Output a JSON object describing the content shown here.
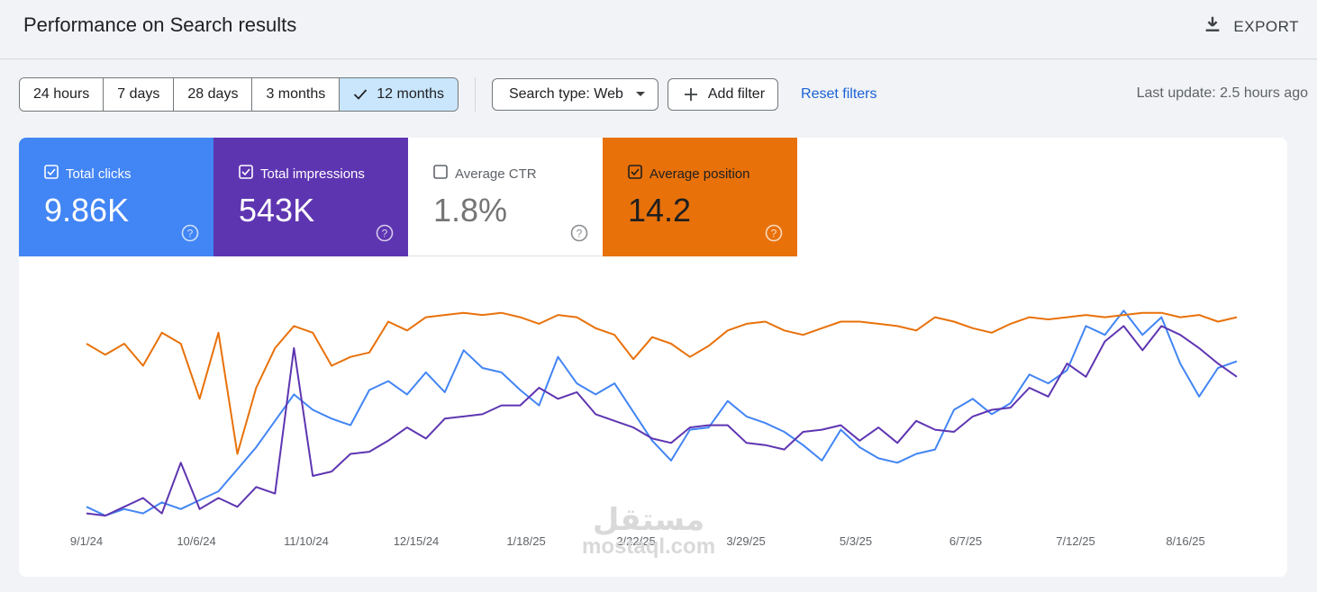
{
  "header": {
    "title": "Performance on Search results",
    "export_label": "EXPORT",
    "export_icon": "download-icon"
  },
  "date_ranges": [
    {
      "label": "24 hours",
      "active": false
    },
    {
      "label": "7 days",
      "active": false
    },
    {
      "label": "28 days",
      "active": false
    },
    {
      "label": "3 months",
      "active": false
    },
    {
      "label": "12 months",
      "active": true
    }
  ],
  "filters": {
    "search_type": "Search type: Web",
    "add_filter": "Add filter",
    "reset": "Reset filters"
  },
  "last_update": "Last update: 2.5 hours ago",
  "metrics": [
    {
      "label": "Total clicks",
      "value": "9.86K",
      "checked": true,
      "color": "#4285f4"
    },
    {
      "label": "Total impressions",
      "value": "543K",
      "checked": true,
      "color": "#5e35b1"
    },
    {
      "label": "Average CTR",
      "value": "1.8%",
      "checked": false,
      "color": "#ffffff"
    },
    {
      "label": "Average position",
      "value": "14.2",
      "checked": true,
      "color": "#e8710a"
    }
  ],
  "watermark": {
    "arabic": "مستقل",
    "latin": "mostaql.com"
  },
  "chart_data": {
    "type": "line",
    "x_tick_labels": [
      "9/1/24",
      "10/6/24",
      "11/10/24",
      "12/15/24",
      "1/18/25",
      "2/22/25",
      "3/29/25",
      "5/3/25",
      "6/7/25",
      "7/12/25",
      "8/16/25"
    ],
    "x_range": [
      "9/1/24",
      "8/30/25"
    ],
    "grid": false,
    "series": [
      {
        "name": "Total clicks",
        "color": "#4285f4",
        "values": [
          0.06,
          0.02,
          0.05,
          0.03,
          0.08,
          0.05,
          0.09,
          0.13,
          0.23,
          0.33,
          0.45,
          0.57,
          0.5,
          0.46,
          0.43,
          0.59,
          0.63,
          0.57,
          0.67,
          0.58,
          0.77,
          0.69,
          0.67,
          0.59,
          0.52,
          0.74,
          0.62,
          0.57,
          0.62,
          0.49,
          0.36,
          0.27,
          0.41,
          0.42,
          0.54,
          0.47,
          0.44,
          0.4,
          0.34,
          0.27,
          0.41,
          0.33,
          0.28,
          0.26,
          0.3,
          0.32,
          0.5,
          0.55,
          0.48,
          0.53,
          0.66,
          0.62,
          0.68,
          0.88,
          0.84,
          0.95,
          0.84,
          0.92,
          0.71,
          0.56,
          0.69,
          0.72
        ]
      },
      {
        "name": "Total impressions",
        "color": "#5e35b1",
        "values": [
          0.03,
          0.02,
          0.06,
          0.1,
          0.03,
          0.26,
          0.05,
          0.1,
          0.06,
          0.15,
          0.12,
          0.78,
          0.2,
          0.22,
          0.3,
          0.31,
          0.36,
          0.42,
          0.37,
          0.46,
          0.47,
          0.48,
          0.52,
          0.52,
          0.6,
          0.55,
          0.58,
          0.48,
          0.45,
          0.42,
          0.37,
          0.35,
          0.42,
          0.43,
          0.43,
          0.35,
          0.34,
          0.32,
          0.4,
          0.41,
          0.43,
          0.36,
          0.42,
          0.35,
          0.45,
          0.41,
          0.4,
          0.47,
          0.5,
          0.51,
          0.6,
          0.56,
          0.71,
          0.65,
          0.81,
          0.88,
          0.77,
          0.88,
          0.84,
          0.78,
          0.71,
          0.65
        ]
      },
      {
        "name": "Average position",
        "color": "#e8710a",
        "values": [
          0.8,
          0.75,
          0.8,
          0.7,
          0.85,
          0.8,
          0.55,
          0.85,
          0.3,
          0.6,
          0.78,
          0.88,
          0.85,
          0.7,
          0.74,
          0.76,
          0.9,
          0.86,
          0.92,
          0.93,
          0.94,
          0.93,
          0.94,
          0.92,
          0.89,
          0.93,
          0.92,
          0.87,
          0.84,
          0.73,
          0.83,
          0.8,
          0.74,
          0.79,
          0.86,
          0.89,
          0.9,
          0.86,
          0.84,
          0.87,
          0.9,
          0.9,
          0.89,
          0.88,
          0.86,
          0.92,
          0.9,
          0.87,
          0.85,
          0.89,
          0.92,
          0.91,
          0.92,
          0.93,
          0.92,
          0.93,
          0.94,
          0.94,
          0.92,
          0.93,
          0.9,
          0.92
        ]
      }
    ]
  }
}
